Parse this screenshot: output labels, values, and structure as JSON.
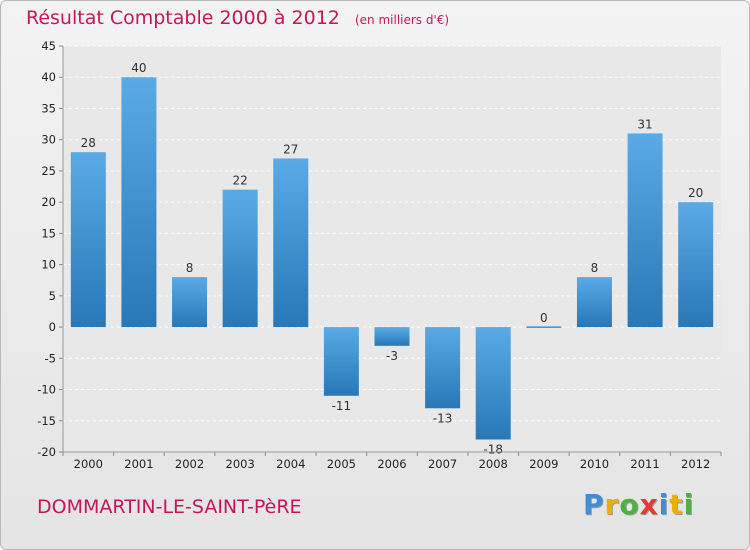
{
  "header": {
    "title": "Résultat Comptable 2000 à 2012",
    "subtitle": "(en milliers d'€)"
  },
  "footer": {
    "commune": "DOMMARTIN-LE-SAINT-PèRE",
    "logo_text": "Proxiti",
    "logo_letters": [
      {
        "ch": "P",
        "color": "#3f8fd6"
      },
      {
        "ch": "r",
        "color": "#e8b100"
      },
      {
        "ch": "o",
        "color": "#4fb043"
      },
      {
        "ch": "x",
        "color": "#e53935"
      },
      {
        "ch": "i",
        "color": "#3f8fd6"
      },
      {
        "ch": "t",
        "color": "#e8b100"
      },
      {
        "ch": "i",
        "color": "#4fb043"
      }
    ]
  },
  "colors": {
    "bar_top": "#5aaae6",
    "bar_bottom": "#2878b8",
    "accent": "#c2185b"
  },
  "chart_data": {
    "type": "bar",
    "title": "Résultat Comptable 2000 à 2012",
    "subtitle": "(en milliers d'€)",
    "categories": [
      "2000",
      "2001",
      "2002",
      "2003",
      "2004",
      "2005",
      "2006",
      "2007",
      "2008",
      "2009",
      "2010",
      "2011",
      "2012"
    ],
    "values": [
      28,
      40,
      8,
      22,
      27,
      -11,
      -3,
      -13,
      -18,
      0,
      8,
      31,
      20
    ],
    "data_labels": [
      "28",
      "40",
      "8",
      "22",
      "27",
      "-11",
      "-3",
      "-13",
      "-18",
      "0",
      "8",
      "31",
      "20"
    ],
    "ylim": [
      -20,
      45
    ],
    "yticks": [
      45,
      40,
      35,
      30,
      25,
      20,
      15,
      10,
      5,
      0,
      -5,
      -10,
      -15,
      -20
    ],
    "grid": true,
    "xlabel": "",
    "ylabel": ""
  }
}
